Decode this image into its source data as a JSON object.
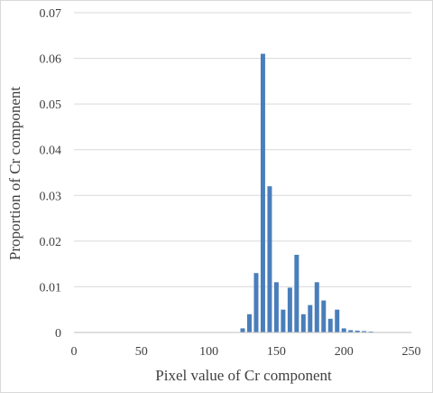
{
  "chart_data": {
    "type": "bar",
    "title": "",
    "xlabel": "Pixel value of Cr component",
    "ylabel": "Proportion of Cr component",
    "xlim": [
      0,
      250
    ],
    "ylim": [
      0,
      0.07
    ],
    "xticks": [
      0,
      50,
      100,
      150,
      200,
      250
    ],
    "yticks": [
      0,
      0.01,
      0.02,
      0.03,
      0.04,
      0.05,
      0.06,
      0.07
    ],
    "xtick_labels": [
      "0",
      "50",
      "100",
      "150",
      "200",
      "250"
    ],
    "ytick_labels": [
      "0",
      "0.01",
      "0.02",
      "0.03",
      "0.04",
      "0.05",
      "0.06",
      "0.07"
    ],
    "grid": "horizontal",
    "legend": "none",
    "bar_color": "#4a7ebb",
    "x": [
      125,
      130,
      135,
      140,
      145,
      150,
      155,
      160,
      165,
      170,
      175,
      180,
      185,
      190,
      195,
      200,
      205,
      210,
      215,
      220
    ],
    "values": [
      0.0009,
      0.004,
      0.013,
      0.061,
      0.032,
      0.011,
      0.005,
      0.0098,
      0.017,
      0.004,
      0.006,
      0.011,
      0.007,
      0.003,
      0.005,
      0.0009,
      0.0005,
      0.0004,
      0.0003,
      0.0002
    ]
  }
}
